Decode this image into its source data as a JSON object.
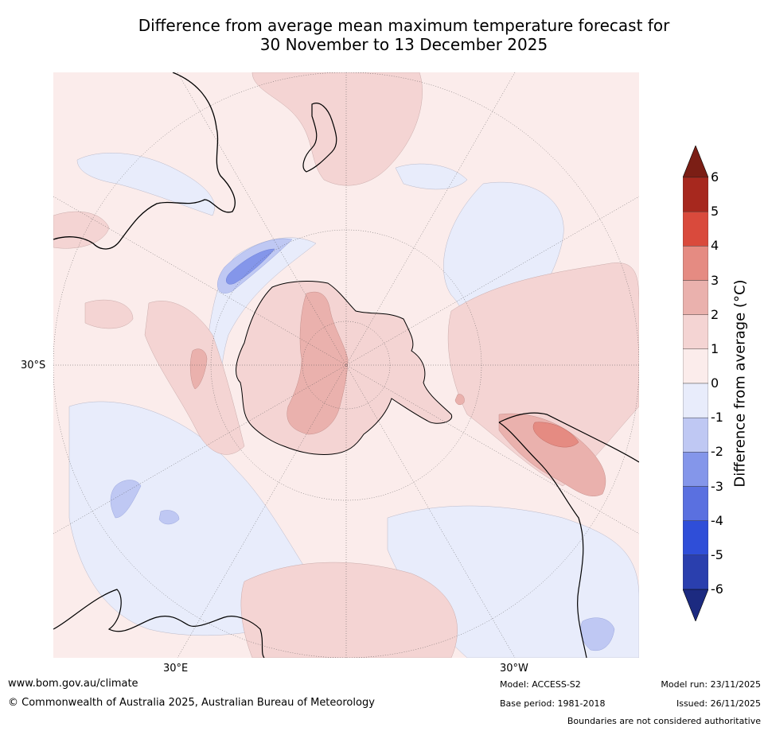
{
  "title": {
    "line1": "Difference from average mean maximum temperature forecast for",
    "line2": "30 November to 13 December 2025"
  },
  "map": {
    "lat_label": "30°S",
    "lon_labels": [
      "30°E",
      "30°W"
    ],
    "colors": {
      "ocean_bg": "#fbeceb",
      "anomaly_0_1": "#fbeceb",
      "anomaly_1_2": "#f4d4d3",
      "anomaly_2_3": "#eab1ad",
      "anomaly_3_4": "#e58b82",
      "anomaly_minus_0_1": "#e8ecfb",
      "anomaly_minus_1_2": "#bfc8f3",
      "anomaly_minus_2_3": "#8496ea",
      "coastline": "#000000",
      "grid": "#555555"
    }
  },
  "colorbar": {
    "title": "Difference from average (°C)",
    "ticks": [
      "6",
      "5",
      "4",
      "3",
      "2",
      "1",
      "0",
      "-1",
      "-2",
      "-3",
      "-4",
      "-5",
      "-6"
    ],
    "colors": [
      "#7b1e15",
      "#a7281e",
      "#d94a3c",
      "#e58b82",
      "#eab1ad",
      "#f4d4d3",
      "#fbeceb",
      "#e8ecfb",
      "#bfc8f3",
      "#8496ea",
      "#5a70e0",
      "#2f4ed8",
      "#2a3fae",
      "#1c2a80"
    ]
  },
  "footer": {
    "url": "www.bom.gov.au/climate",
    "copyright": "© Commonwealth of Australia 2025, Australian Bureau of Meteorology",
    "model": "Model: ACCESS-S2",
    "base_period": "Base period: 1981-2018",
    "model_run": "Model run: 23/11/2025",
    "issued": "Issued: 26/11/2025",
    "boundaries": "Boundaries are not considered authoritative"
  }
}
